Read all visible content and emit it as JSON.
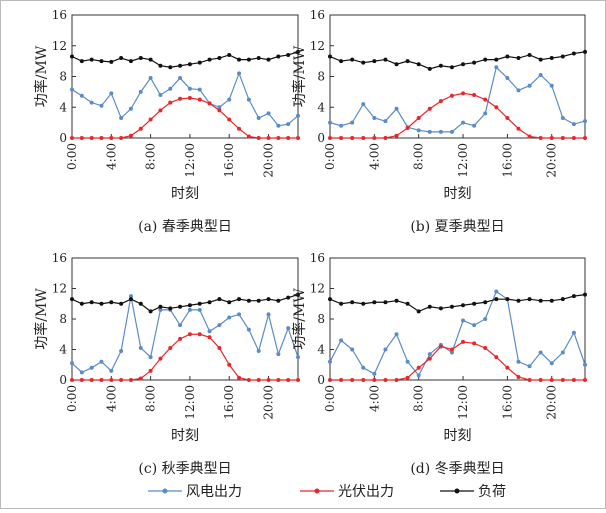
{
  "chart_data": [
    {
      "type": "line",
      "caption": "(a) 春季典型日",
      "xlabel": "时刻",
      "ylabel": "功率/MW",
      "x": [
        0,
        1,
        2,
        3,
        4,
        5,
        6,
        7,
        8,
        9,
        10,
        11,
        12,
        13,
        14,
        15,
        16,
        17,
        18,
        19,
        20,
        21,
        22,
        23
      ],
      "xlim": [
        0,
        23
      ],
      "ylim": [
        0,
        16
      ],
      "yticks": [
        0,
        4,
        8,
        12,
        16
      ],
      "xticks": [
        {
          "value": 0,
          "label": "0:00"
        },
        {
          "value": 4,
          "label": "4:00"
        },
        {
          "value": 8,
          "label": "8:00"
        },
        {
          "value": 12,
          "label": "12:00"
        },
        {
          "value": 16,
          "label": "16:00"
        },
        {
          "value": 20,
          "label": "20:00"
        }
      ],
      "series": [
        {
          "name": "风电出力",
          "color": "#5b8cc8",
          "values": [
            6.3,
            5.5,
            4.6,
            4.2,
            5.8,
            2.6,
            3.8,
            6.0,
            7.8,
            5.6,
            6.4,
            7.8,
            6.4,
            6.3,
            4.5,
            4.0,
            5.0,
            8.4,
            5.0,
            2.6,
            3.2,
            1.6,
            1.8,
            2.9
          ]
        },
        {
          "name": "光伏出力",
          "color": "#e8272a",
          "values": [
            0,
            0,
            0,
            0,
            0,
            0,
            0.3,
            1.2,
            2.4,
            3.6,
            4.6,
            5.1,
            5.2,
            5.0,
            4.5,
            3.6,
            2.4,
            1.2,
            0.2,
            0,
            0,
            0,
            0,
            0
          ]
        },
        {
          "name": "负荷",
          "color": "#111111",
          "values": [
            10.6,
            10.0,
            10.2,
            10.0,
            9.9,
            10.4,
            10.0,
            10.4,
            10.2,
            9.4,
            9.2,
            9.4,
            9.6,
            9.8,
            10.2,
            10.4,
            10.8,
            10.2,
            10.2,
            10.4,
            10.2,
            10.6,
            10.8,
            11.2
          ]
        }
      ]
    },
    {
      "type": "line",
      "caption": "(b) 夏季典型日",
      "xlabel": "时刻",
      "ylabel": "功率/MW",
      "x": [
        0,
        1,
        2,
        3,
        4,
        5,
        6,
        7,
        8,
        9,
        10,
        11,
        12,
        13,
        14,
        15,
        16,
        17,
        18,
        19,
        20,
        21,
        22,
        23
      ],
      "xlim": [
        0,
        23
      ],
      "ylim": [
        0,
        16
      ],
      "yticks": [
        0,
        4,
        8,
        12,
        16
      ],
      "xticks": [
        {
          "value": 0,
          "label": "0:00"
        },
        {
          "value": 4,
          "label": "4:00"
        },
        {
          "value": 8,
          "label": "8:00"
        },
        {
          "value": 12,
          "label": "12:00"
        },
        {
          "value": 16,
          "label": "16:00"
        },
        {
          "value": 20,
          "label": "20:00"
        }
      ],
      "series": [
        {
          "color": "#5b8cc8",
          "values": [
            2.0,
            1.6,
            2.0,
            4.4,
            2.6,
            2.2,
            3.8,
            1.4,
            1.0,
            0.8,
            0.8,
            0.8,
            2.0,
            1.6,
            3.2,
            9.2,
            7.8,
            6.2,
            6.8,
            8.2,
            6.8,
            2.6,
            1.8,
            2.2
          ]
        },
        {
          "color": "#e8272a",
          "values": [
            0,
            0,
            0,
            0,
            0,
            0,
            0.3,
            1.3,
            2.6,
            3.8,
            4.8,
            5.5,
            5.8,
            5.6,
            5.0,
            4.0,
            2.6,
            1.2,
            0.2,
            0,
            0,
            0,
            0,
            0
          ]
        },
        {
          "color": "#111111",
          "values": [
            10.6,
            10.0,
            10.2,
            9.8,
            10.0,
            10.2,
            9.6,
            10.0,
            9.6,
            9.0,
            9.4,
            9.2,
            9.6,
            9.8,
            10.2,
            10.2,
            10.6,
            10.4,
            10.8,
            10.2,
            10.4,
            10.6,
            11.0,
            11.2
          ]
        }
      ]
    },
    {
      "type": "line",
      "caption": "(c) 秋季典型日",
      "xlabel": "时刻",
      "ylabel": "功率/MW",
      "x": [
        0,
        1,
        2,
        3,
        4,
        5,
        6,
        7,
        8,
        9,
        10,
        11,
        12,
        13,
        14,
        15,
        16,
        17,
        18,
        19,
        20,
        21,
        22,
        23
      ],
      "xlim": [
        0,
        23
      ],
      "ylim": [
        0,
        16
      ],
      "yticks": [
        0,
        4,
        8,
        12,
        16
      ],
      "xticks": [
        {
          "value": 0,
          "label": "0:00"
        },
        {
          "value": 4,
          "label": "4:00"
        },
        {
          "value": 8,
          "label": "8:00"
        },
        {
          "value": 12,
          "label": "12:00"
        },
        {
          "value": 16,
          "label": "16:00"
        },
        {
          "value": 20,
          "label": "20:00"
        }
      ],
      "series": [
        {
          "color": "#5b8cc8",
          "values": [
            2.2,
            1.0,
            1.6,
            2.4,
            1.2,
            3.8,
            11.0,
            4.2,
            3.0,
            9.2,
            9.2,
            7.2,
            9.2,
            9.2,
            6.4,
            7.2,
            8.2,
            8.6,
            6.6,
            3.8,
            8.6,
            3.4,
            6.8,
            3.0
          ]
        },
        {
          "color": "#e8272a",
          "values": [
            0,
            0,
            0,
            0,
            0,
            0,
            0,
            0.2,
            1.2,
            2.8,
            4.2,
            5.4,
            6.0,
            6.0,
            5.6,
            4.2,
            2.0,
            0.3,
            0,
            0,
            0,
            0,
            0,
            0
          ]
        },
        {
          "color": "#111111",
          "values": [
            10.6,
            10.0,
            10.2,
            10.0,
            10.2,
            10.0,
            10.6,
            10.0,
            9.0,
            9.6,
            9.4,
            9.6,
            9.8,
            10.0,
            10.2,
            10.6,
            10.2,
            10.6,
            10.4,
            10.4,
            10.6,
            10.4,
            10.8,
            11.2
          ]
        }
      ]
    },
    {
      "type": "line",
      "caption": "(d) 冬季典型日",
      "xlabel": "时刻",
      "ylabel": "功率/MW",
      "x": [
        0,
        1,
        2,
        3,
        4,
        5,
        6,
        7,
        8,
        9,
        10,
        11,
        12,
        13,
        14,
        15,
        16,
        17,
        18,
        19,
        20,
        21,
        22,
        23
      ],
      "xlim": [
        0,
        23
      ],
      "ylim": [
        0,
        16
      ],
      "yticks": [
        0,
        4,
        8,
        12,
        16
      ],
      "xticks": [
        {
          "value": 0,
          "label": "0:00"
        },
        {
          "value": 4,
          "label": "4:00"
        },
        {
          "value": 8,
          "label": "8:00"
        },
        {
          "value": 12,
          "label": "12:00"
        },
        {
          "value": 16,
          "label": "16:00"
        },
        {
          "value": 20,
          "label": "20:00"
        }
      ],
      "series": [
        {
          "color": "#5b8cc8",
          "values": [
            2.4,
            5.2,
            4.0,
            1.6,
            0.8,
            4.0,
            6.0,
            2.4,
            0.6,
            3.4,
            4.6,
            3.6,
            7.8,
            7.2,
            8.0,
            11.6,
            10.6,
            2.4,
            1.8,
            3.6,
            2.2,
            3.6,
            6.2,
            2.0
          ]
        },
        {
          "color": "#e8272a",
          "values": [
            0,
            0,
            0,
            0,
            0,
            0,
            0,
            0.3,
            1.6,
            2.8,
            4.4,
            4.0,
            5.0,
            4.8,
            4.2,
            3.0,
            1.6,
            0.4,
            0,
            0,
            0,
            0,
            0,
            0
          ]
        },
        {
          "color": "#111111",
          "values": [
            10.6,
            10.0,
            10.2,
            10.0,
            10.2,
            10.2,
            10.4,
            10.0,
            9.0,
            9.6,
            9.4,
            9.6,
            9.8,
            10.0,
            10.2,
            10.6,
            10.6,
            10.4,
            10.6,
            10.4,
            10.4,
            10.6,
            11.0,
            11.2
          ]
        }
      ]
    }
  ]
}
